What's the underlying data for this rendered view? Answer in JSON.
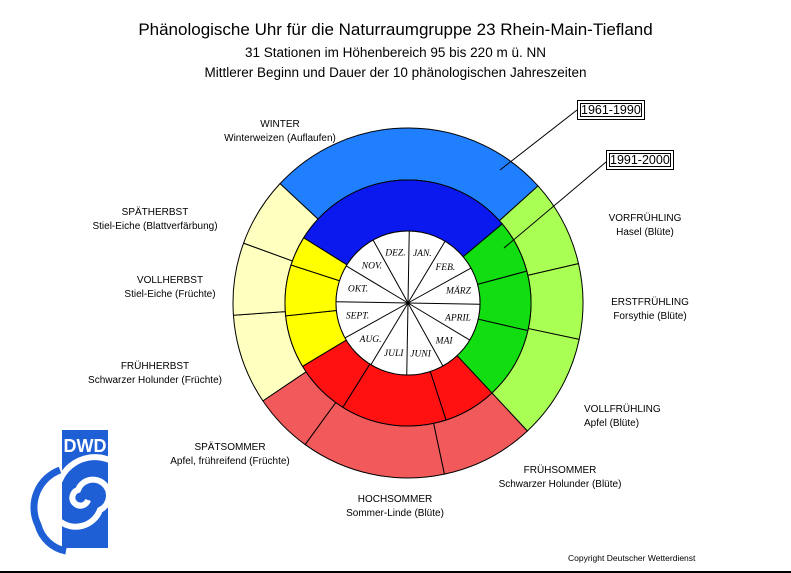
{
  "title": "Phänologische Uhr für die Naturraumgruppe 23 Rhein-Main-Tiefland",
  "subtitle1": "31 Stationen im Höhenbereich 95 bis 220 m ü. NN",
  "subtitle2": "Mittlerer Beginn und Dauer der 10 phänologischen Jahreszeiten",
  "periods": {
    "outer": "1961-1990",
    "inner": "1991-2000"
  },
  "months": [
    "JAN.",
    "FEB.",
    "MÄRZ",
    "APRIL",
    "MAI",
    "JUNI",
    "JULI",
    "AUG.",
    "SEPT.",
    "OKT.",
    "NOV.",
    "DEZ."
  ],
  "seasons": [
    {
      "name": "WINTER",
      "phase": "Winterweizen (Auflaufen)"
    },
    {
      "name": "SPÄTHERBST",
      "phase": "Stiel-Eiche (Blattverfärbung)"
    },
    {
      "name": "VOLLHERBST",
      "phase": "Stiel-Eiche (Früchte)"
    },
    {
      "name": "FRÜHHERBST",
      "phase": "Schwarzer Holunder (Früchte)"
    },
    {
      "name": "SPÄTSOMMER",
      "phase": "Apfel, frühreifend (Früchte)"
    },
    {
      "name": "HOCHSOMMER",
      "phase": "Sommer-Linde (Blüte)"
    },
    {
      "name": "FRÜHSOMMER",
      "phase": "Schwarzer Holunder (Blüte)"
    },
    {
      "name": "VOLLFRÜHLING",
      "phase": "Apfel (Blüte)"
    },
    {
      "name": "ERSTFRÜHLING",
      "phase": "Forsythie (Blüte)"
    },
    {
      "name": "VORFRÜHLING",
      "phase": "Hasel (Blüte)"
    }
  ],
  "colors": {
    "winter_outer": "#1f7fff",
    "winter_inner": "#0b19ef",
    "spring_outer": "#aaff55",
    "spring_inner": "#11dd11",
    "summer_outer": "#f2595a",
    "summer_inner": "#ff1111",
    "autumn_outer": "#ffffbf",
    "autumn_inner": "#ffff00"
  },
  "logo": "DWD",
  "copyright": "Copyright Deutscher Wetterdienst"
}
